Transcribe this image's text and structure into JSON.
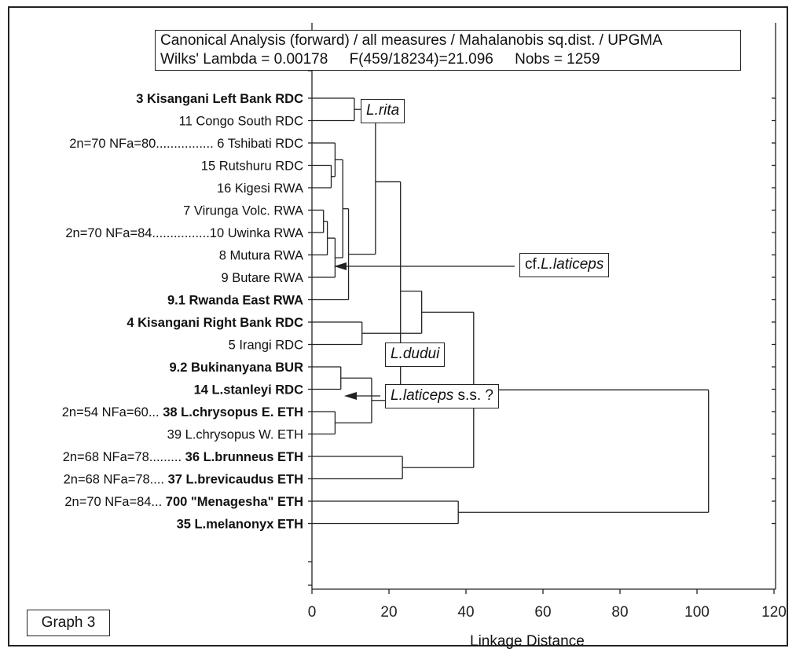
{
  "info_box": {
    "line1": "Canonical Analysis (forward) / all measures / Mahalanobis sq.dist. / UPGMA",
    "wilks": "Wilks' Lambda = 0.00178",
    "f_stat": "F(459/18234)=21.096",
    "nobs": "Nobs = 1259"
  },
  "graph_label": "Graph 3",
  "axis": {
    "title": "Linkage Distance",
    "ticks": [
      0,
      20,
      40,
      60,
      80,
      100,
      120
    ]
  },
  "leaves": [
    {
      "prefix": "",
      "text": "3 Kisangani Left Bank RDC",
      "bold": true
    },
    {
      "prefix": "",
      "text": "11 Congo South RDC",
      "bold": false
    },
    {
      "prefix": "2n=70 NFa=80................ ",
      "text": "6 Tshibati RDC",
      "bold": false
    },
    {
      "prefix": "",
      "text": "15 Rutshuru RDC",
      "bold": false
    },
    {
      "prefix": "",
      "text": "16 Kigesi RWA",
      "bold": false
    },
    {
      "prefix": "",
      "text": "7 Virunga Volc. RWA",
      "bold": false
    },
    {
      "prefix": "2n=70 NFa=84................",
      "text": "10 Uwinka RWA",
      "bold": false
    },
    {
      "prefix": "",
      "text": "8 Mutura RWA",
      "bold": false
    },
    {
      "prefix": "",
      "text": "9 Butare RWA",
      "bold": false
    },
    {
      "prefix": "",
      "text": "9.1 Rwanda East RWA",
      "bold": true
    },
    {
      "prefix": "",
      "text": "4 Kisangani Right Bank RDC",
      "bold": true
    },
    {
      "prefix": "",
      "text": "5 Irangi RDC",
      "bold": false
    },
    {
      "prefix": "",
      "text": "9.2 Bukinanyana BUR",
      "bold": true
    },
    {
      "prefix": "",
      "text": "14 L.stanleyi RDC",
      "bold": true
    },
    {
      "prefix": "2n=54 NFa=60... ",
      "text": "38 L.chrysopus E. ETH",
      "bold": true
    },
    {
      "prefix": "",
      "text": "39 L.chrysopus W. ETH",
      "bold": false
    },
    {
      "prefix": "2n=68 NFa=78......... ",
      "text": "36 L.brunneus ETH",
      "bold": true
    },
    {
      "prefix": "2n=68 NFa=78.... ",
      "text": "37 L.brevicaudus ETH",
      "bold": true
    },
    {
      "prefix": "2n=70 NFa=84... ",
      "text": "700 \"Menagesha\" ETH",
      "bold": true
    },
    {
      "prefix": "",
      "text": "35 L.melanonyx ETH",
      "bold": true
    }
  ],
  "annotations": {
    "rita": {
      "italic": "L.rita",
      "plain": ""
    },
    "laticeps_cf": {
      "plain": "cf.",
      "italic": "L.laticeps"
    },
    "dudui": {
      "italic": "L.dudui",
      "plain": ""
    },
    "laticeps_ss": {
      "italic": "L.laticeps",
      "plain": " s.s. ?"
    }
  }
}
